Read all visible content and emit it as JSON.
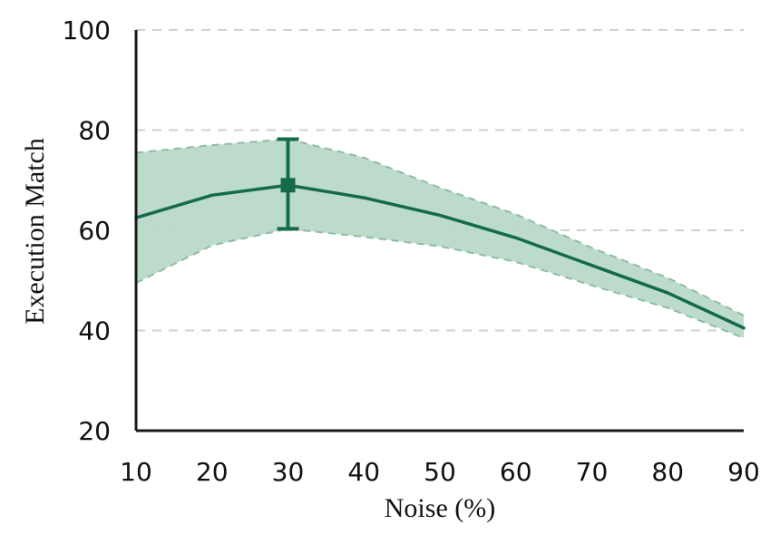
{
  "chart_data": {
    "type": "line",
    "title": "",
    "xlabel": "Noise (%)",
    "ylabel": "Execution Match",
    "x": [
      10,
      20,
      30,
      40,
      50,
      60,
      70,
      80,
      90
    ],
    "xlim": [
      10,
      90
    ],
    "ylim": [
      20,
      100
    ],
    "xticks": [
      10,
      20,
      30,
      40,
      50,
      60,
      70,
      80,
      90
    ],
    "yticks": [
      20,
      40,
      60,
      80,
      100
    ],
    "grid": "horizontal-dashed",
    "legend": "none",
    "series": [
      {
        "values": [
          62.5,
          67,
          69,
          66.5,
          63,
          58.5,
          53,
          47.5,
          40.5
        ],
        "lower": [
          49.5,
          57,
          60.3,
          58.7,
          56.8,
          53.7,
          49,
          44.5,
          38.5
        ],
        "upper": [
          75.5,
          77,
          78.2,
          74.5,
          68.5,
          63.2,
          56.5,
          50.5,
          43
        ],
        "color": "#136b4c",
        "band_color": "#b8d9c8",
        "band_edge_color": "#8fbca5",
        "marker_x": 30,
        "marker_y": 69,
        "error_bar": [
          60.3,
          78.2
        ]
      }
    ]
  }
}
